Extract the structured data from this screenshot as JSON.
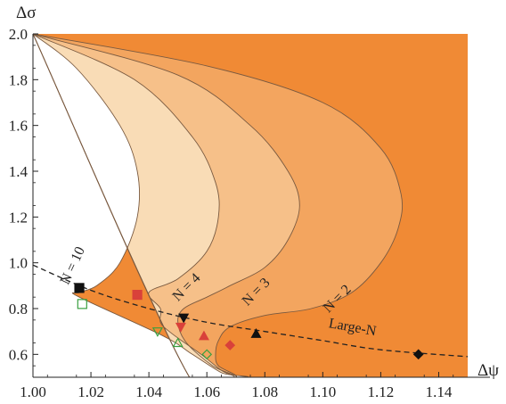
{
  "chart_data": {
    "type": "area",
    "xlabel": "Δψ",
    "ylabel": "Δσ",
    "xlim": [
      1.0,
      1.15
    ],
    "ylim": [
      0.5,
      2.0
    ],
    "x_ticks": [
      "1.00",
      "1.02",
      "1.04",
      "1.06",
      "1.08",
      "1.10",
      "1.12",
      "1.14"
    ],
    "y_ticks": [
      "0.6",
      "0.8",
      "1.0",
      "1.2",
      "1.4",
      "1.6",
      "1.8",
      "2.0"
    ],
    "colors": {
      "outer": "#f08a35",
      "N=2": "#f3a55f",
      "N=3": "#f6c089",
      "N=4_and_10": "#f9dcb6",
      "boundary": "#7a5a40"
    },
    "regions": [
      {
        "name": "N = 2",
        "label": "N = 2",
        "points": [
          [
            1.0,
            2.0
          ],
          [
            1.06,
            1.86
          ],
          [
            1.1,
            1.7
          ],
          [
            1.12,
            1.5
          ],
          [
            1.127,
            1.3
          ],
          [
            1.126,
            1.15
          ],
          [
            1.12,
            1.0
          ],
          [
            1.11,
            0.87
          ],
          [
            1.096,
            0.8
          ],
          [
            1.08,
            0.77
          ],
          [
            1.068,
            0.72
          ],
          [
            1.064,
            0.66
          ],
          [
            1.063,
            0.6
          ],
          [
            1.064,
            0.55
          ],
          [
            1.07,
            0.5
          ],
          [
            1.054,
            0.5
          ],
          [
            1.0,
            2.0
          ]
        ]
      },
      {
        "name": "N = 3",
        "label": "N = 3",
        "points": [
          [
            1.0,
            2.0
          ],
          [
            1.05,
            1.82
          ],
          [
            1.075,
            1.6
          ],
          [
            1.088,
            1.4
          ],
          [
            1.092,
            1.25
          ],
          [
            1.088,
            1.1
          ],
          [
            1.08,
            0.98
          ],
          [
            1.068,
            0.9
          ],
          [
            1.06,
            0.85
          ],
          [
            1.052,
            0.8
          ],
          [
            1.05,
            0.74
          ],
          [
            1.053,
            0.65
          ],
          [
            1.062,
            0.55
          ],
          [
            1.07,
            0.5
          ],
          [
            1.054,
            0.5
          ],
          [
            1.0,
            2.0
          ]
        ]
      },
      {
        "name": "N = 4 and N = 10",
        "label": "N = 4",
        "points": [
          [
            1.0,
            2.0
          ],
          [
            1.035,
            1.8
          ],
          [
            1.055,
            1.55
          ],
          [
            1.063,
            1.35
          ],
          [
            1.064,
            1.2
          ],
          [
            1.06,
            1.05
          ],
          [
            1.05,
            0.93
          ],
          [
            1.04,
            0.87
          ],
          [
            1.044,
            0.8
          ],
          [
            1.044,
            0.74
          ],
          [
            1.048,
            0.69
          ],
          [
            1.058,
            0.6
          ],
          [
            1.065,
            0.53
          ],
          [
            1.069,
            0.5
          ],
          [
            1.054,
            0.5
          ],
          [
            1.0,
            2.0
          ]
        ]
      },
      {
        "name": "white cutout",
        "label": "N = 10",
        "points": [
          [
            1.0,
            2.0
          ],
          [
            1.015,
            1.85
          ],
          [
            1.03,
            1.6
          ],
          [
            1.036,
            1.4
          ],
          [
            1.036,
            1.2
          ],
          [
            1.03,
            1.0
          ],
          [
            1.022,
            0.9
          ],
          [
            1.016,
            0.87
          ],
          [
            1.016,
            0.85
          ],
          [
            1.045,
            0.68
          ],
          [
            1.055,
            0.6
          ],
          [
            1.065,
            0.52
          ],
          [
            1.07,
            0.5
          ],
          [
            1.0,
            0.5
          ],
          [
            1.0,
            2.0
          ]
        ]
      }
    ],
    "large_n_curve": {
      "label": "Large-N",
      "points": [
        [
          1.0,
          0.99
        ],
        [
          1.02,
          0.88
        ],
        [
          1.04,
          0.8
        ],
        [
          1.06,
          0.74
        ],
        [
          1.08,
          0.7
        ],
        [
          1.1,
          0.66
        ],
        [
          1.12,
          0.62
        ],
        [
          1.15,
          0.59
        ]
      ]
    },
    "markers": [
      {
        "shape": "square",
        "x": 1.016,
        "y": 0.89,
        "color": "#111111",
        "filled": true
      },
      {
        "shape": "square",
        "x": 1.017,
        "y": 0.82,
        "color": "#3aa040",
        "filled": false
      },
      {
        "shape": "square",
        "x": 1.036,
        "y": 0.86,
        "color": "#d9413a",
        "filled": true
      },
      {
        "shape": "triangle-down",
        "x": 1.052,
        "y": 0.76,
        "color": "#111111",
        "filled": true
      },
      {
        "shape": "triangle-down",
        "x": 1.051,
        "y": 0.72,
        "color": "#d9413a",
        "filled": true
      },
      {
        "shape": "triangle-down",
        "x": 1.043,
        "y": 0.7,
        "color": "#3aa040",
        "filled": false
      },
      {
        "shape": "triangle-up",
        "x": 1.077,
        "y": 0.69,
        "color": "#111111",
        "filled": true
      },
      {
        "shape": "triangle-up",
        "x": 1.059,
        "y": 0.68,
        "color": "#d9413a",
        "filled": true
      },
      {
        "shape": "triangle-up",
        "x": 1.05,
        "y": 0.65,
        "color": "#3aa040",
        "filled": false
      },
      {
        "shape": "diamond",
        "x": 1.133,
        "y": 0.6,
        "color": "#111111",
        "filled": true
      },
      {
        "shape": "diamond",
        "x": 1.068,
        "y": 0.64,
        "color": "#d9413a",
        "filled": true
      },
      {
        "shape": "diamond",
        "x": 1.06,
        "y": 0.6,
        "color": "#3aa040",
        "filled": false
      }
    ]
  }
}
